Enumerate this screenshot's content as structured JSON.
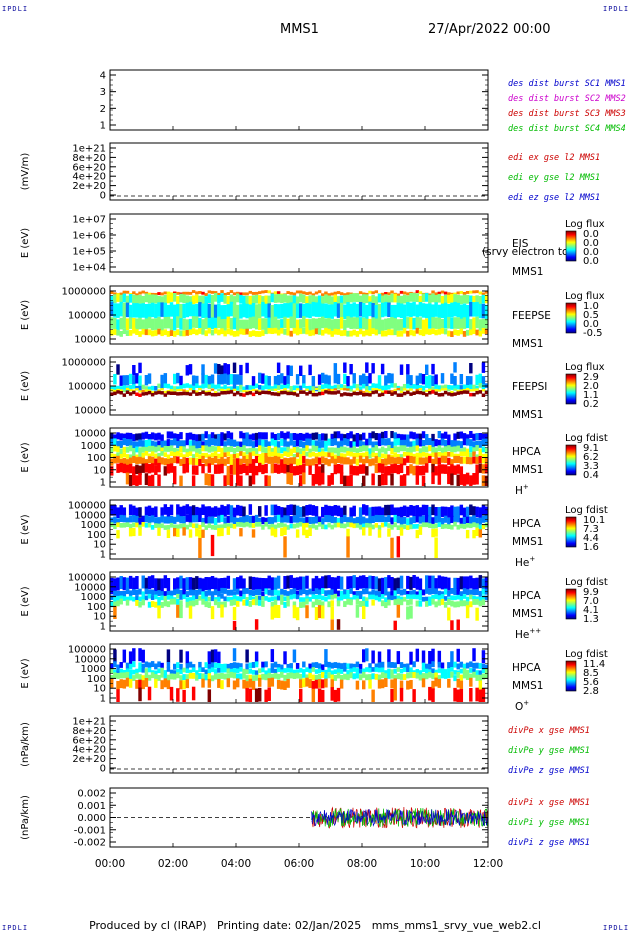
{
  "corner_text": "IPDLI",
  "header": {
    "title": "MMS1",
    "date": "27/Apr/2022 00:00"
  },
  "footer": "Produced by cl (IRAP)   Printing date: 02/Jan/2025   mms_mms1_srvy_vue_web2.cl",
  "chart_data": [
    {
      "type": "line",
      "ylabel": "",
      "yticks": [
        "4",
        "3",
        "2",
        "1"
      ],
      "legend": [
        {
          "text": "des dist burst SC1 MMS1",
          "color": "#0000cc"
        },
        {
          "text": "des dist burst SC2 MMS2",
          "color": "#cc00cc"
        },
        {
          "text": "des dist burst SC3 MMS3",
          "color": "#cc0000"
        },
        {
          "text": "des dist burst SC4 MMS4",
          "color": "#00bb00"
        }
      ]
    },
    {
      "type": "line",
      "ylabel": "(mV/m)",
      "yticks": [
        "1e+21",
        "8e+20",
        "6e+20",
        "4e+20",
        "2e+20",
        "0"
      ],
      "legend": [
        {
          "text": "edi ex gse l2 MMS1",
          "color": "#cc0000"
        },
        {
          "text": "edi ey gse l2 MMS1",
          "color": "#00bb00"
        },
        {
          "text": "edi ez gse l2 MMS1",
          "color": "#0000cc"
        }
      ]
    },
    {
      "type": "heatmap",
      "ylabel": "E (eV)",
      "yticks": [
        "1e+07",
        "1e+06",
        "1e+05",
        "1e+04"
      ],
      "instrument": [
        "EIS",
        "MMS1"
      ],
      "overlay_text": "(srvy electron to",
      "colorbar": {
        "title": "Log flux",
        "ticks": [
          "0.0",
          "0.0",
          "0.0",
          "0.0"
        ]
      }
    },
    {
      "type": "heatmap",
      "ylabel": "E (eV)",
      "yticks": [
        "1000000",
        "100000",
        "10000"
      ],
      "instrument": [
        "FEEPSE",
        "MMS1"
      ],
      "colorbar": {
        "title": "Log flux",
        "ticks": [
          "1.0",
          "0.5",
          "0.0",
          "-0.5"
        ]
      }
    },
    {
      "type": "heatmap",
      "ylabel": "E (eV)",
      "yticks": [
        "1000000",
        "100000",
        "10000"
      ],
      "instrument": [
        "FEEPSI",
        "MMS1"
      ],
      "colorbar": {
        "title": "Log flux",
        "ticks": [
          "2.9",
          "2.0",
          "1.1",
          "0.2"
        ]
      }
    },
    {
      "type": "heatmap",
      "ylabel": "E (eV)",
      "yticks": [
        "10000",
        "1000",
        "100",
        "10",
        "1"
      ],
      "instrument": [
        "HPCA",
        "MMS1"
      ],
      "species": "H",
      "species_sup": "+",
      "colorbar": {
        "title": "Log fdist",
        "ticks": [
          "9.1",
          "6.2",
          "3.3",
          "0.4"
        ]
      }
    },
    {
      "type": "heatmap",
      "ylabel": "E (eV)",
      "yticks": [
        "100000",
        "10000",
        "1000",
        "100",
        "10",
        "1"
      ],
      "instrument": [
        "HPCA",
        "MMS1"
      ],
      "species": "He",
      "species_sup": "+",
      "colorbar": {
        "title": "Log fdist",
        "ticks": [
          "10.1",
          "7.3",
          "4.4",
          "1.6"
        ]
      }
    },
    {
      "type": "heatmap",
      "ylabel": "E (eV)",
      "yticks": [
        "100000",
        "10000",
        "1000",
        "100",
        "10",
        "1"
      ],
      "instrument": [
        "HPCA",
        "MMS1"
      ],
      "species": "He",
      "species_sup": "++",
      "colorbar": {
        "title": "Log fdist",
        "ticks": [
          "9.9",
          "7.0",
          "4.1",
          "1.3"
        ]
      }
    },
    {
      "type": "heatmap",
      "ylabel": "E (eV)",
      "yticks": [
        "100000",
        "10000",
        "1000",
        "100",
        "10",
        "1"
      ],
      "instrument": [
        "HPCA",
        "MMS1"
      ],
      "species": "O",
      "species_sup": "+",
      "colorbar": {
        "title": "Log fdist",
        "ticks": [
          "11.4",
          "8.5",
          "5.6",
          "2.8"
        ]
      }
    },
    {
      "type": "line",
      "ylabel": "(nPa/km)",
      "yticks": [
        "1e+21",
        "8e+20",
        "6e+20",
        "4e+20",
        "2e+20",
        "0"
      ],
      "legend": [
        {
          "text": "divPe x gse MMS1",
          "color": "#cc0000"
        },
        {
          "text": "divPe y gse MMS1",
          "color": "#00bb00"
        },
        {
          "text": "divPe z gse MMS1",
          "color": "#0000cc"
        }
      ]
    },
    {
      "type": "line",
      "ylabel": "(nPa/km)",
      "yticks": [
        "0.002",
        "0.001",
        "0.000",
        "-0.001",
        "-0.002"
      ],
      "ylim": [
        -0.0025,
        0.0025
      ],
      "data_start": "06:24",
      "data_end": "12:00",
      "legend": [
        {
          "text": "divPi x gse MMS1",
          "color": "#cc0000"
        },
        {
          "text": "divPi y gse MMS1",
          "color": "#00bb00"
        },
        {
          "text": "divPi z gse MMS1",
          "color": "#0000cc"
        }
      ]
    }
  ],
  "xaxis": {
    "ticks": [
      "00:00",
      "02:00",
      "04:00",
      "06:00",
      "08:00",
      "10:00",
      "12:00"
    ],
    "range": [
      "00:00",
      "12:00"
    ]
  },
  "colormap": [
    "#000080",
    "#0000ff",
    "#0080ff",
    "#00ffff",
    "#80ff80",
    "#ffff00",
    "#ff8000",
    "#ff0000",
    "#800000"
  ]
}
